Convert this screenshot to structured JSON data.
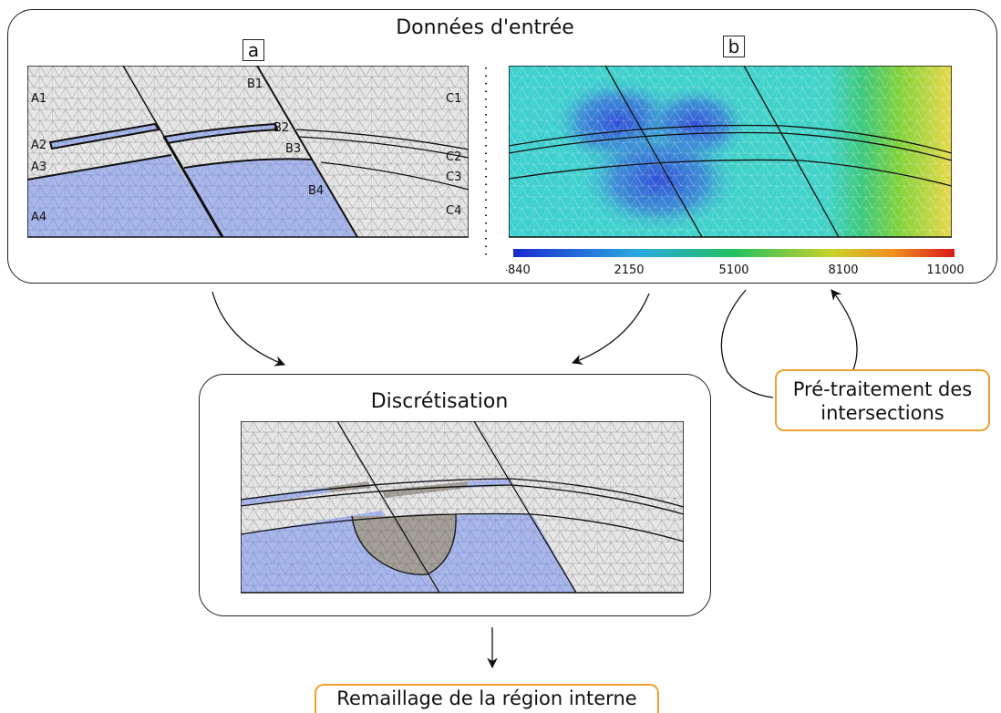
{
  "input_panel": {
    "title": "Données d'entrée"
  },
  "panel_a": {
    "tag": "a",
    "region_labels": [
      "A1",
      "A2",
      "A3",
      "A4",
      "B1",
      "B2",
      "B3",
      "B4",
      "C1",
      "C2",
      "C3",
      "C4"
    ]
  },
  "panel_b": {
    "tag": "b",
    "colorbar": {
      "ticks": [
        "-840",
        "2150",
        "5100",
        "8100",
        "11000"
      ]
    }
  },
  "discretisation": {
    "title": "Discrétisation"
  },
  "preprocess_box": {
    "line1": "Pré-traitement des",
    "line2": "intersections"
  },
  "remesh_box": {
    "label": "Remaillage de la région interne"
  },
  "colors": {
    "mesh_grey": "#e4e4e4",
    "layer_blue": "#a8b6e8",
    "overlap_grey": "#a39e98",
    "accent_orange": "#f0a030"
  }
}
